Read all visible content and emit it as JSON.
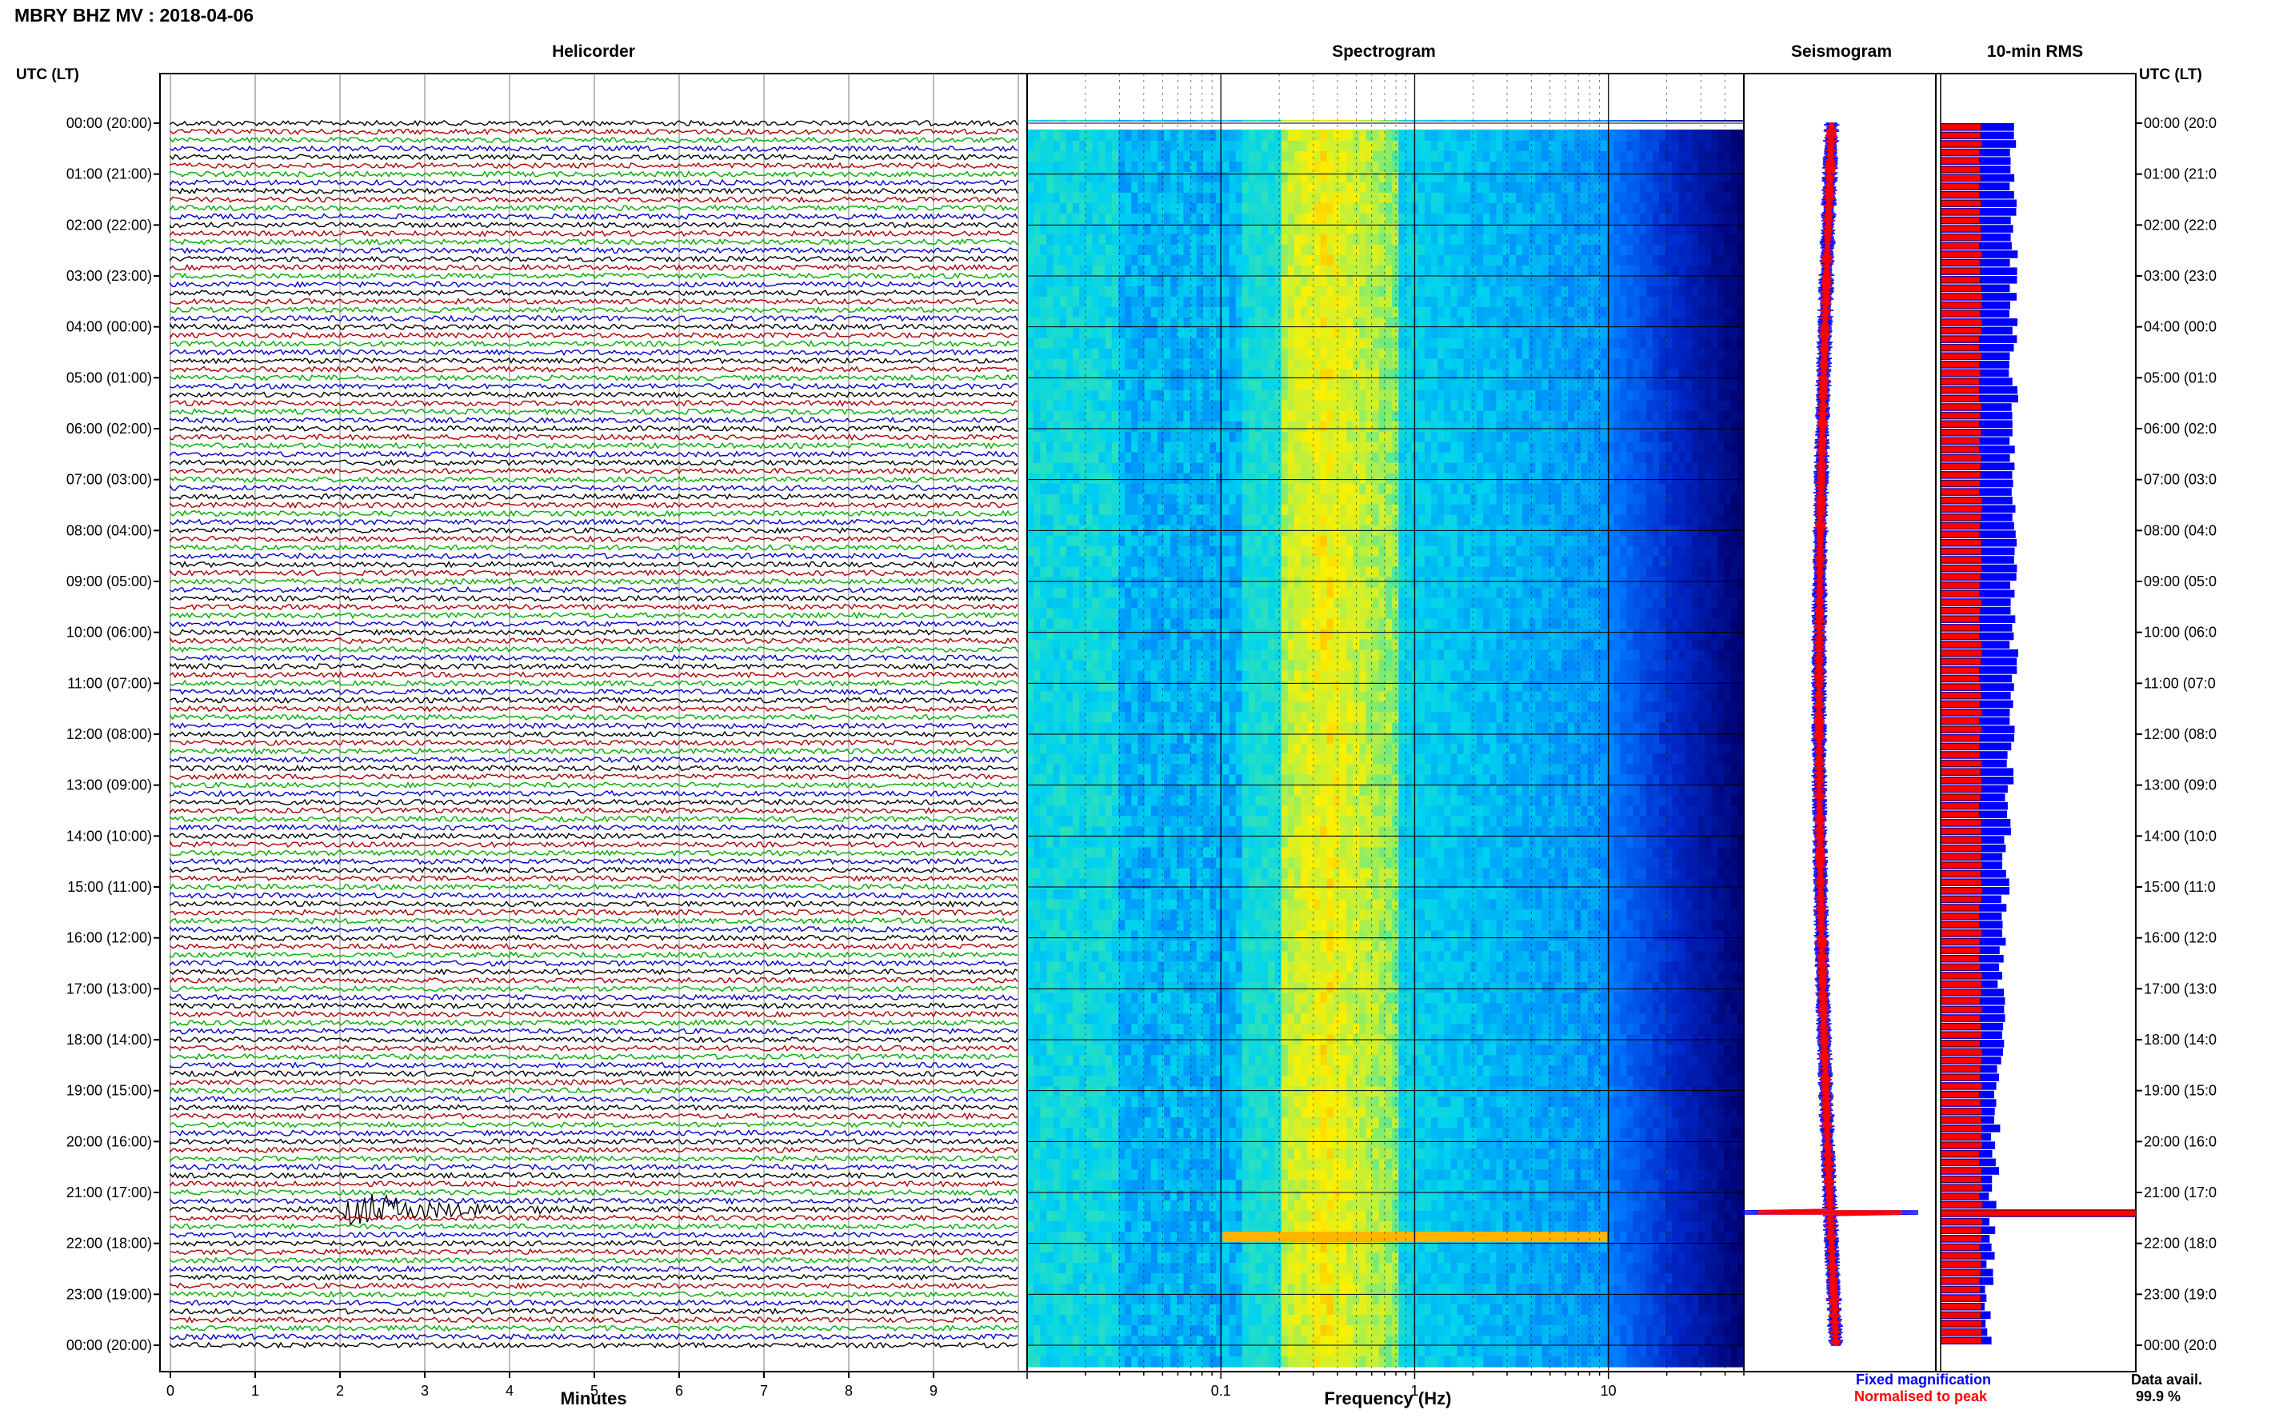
{
  "header": {
    "station_title": "MBRY BHZ MV : 2018-04-06",
    "left_axis_label": "UTC (LT)",
    "right_axis_label": "UTC (LT)"
  },
  "panels": {
    "helicorder_title": "Helicorder",
    "spectrogram_title": "Spectrogram",
    "seismogram_title": "Seismogram",
    "rms_title": "10-min RMS"
  },
  "footer": {
    "legend_fixed": "Fixed magnification",
    "legend_normalised": "Normalised to peak",
    "data_avail_label": "Data avail.",
    "data_avail_value": "99.9 %"
  },
  "colors": {
    "trace_cycle": [
      "#000000",
      "#aa0000",
      "#00aa00",
      "#0000cc"
    ],
    "fixed_magnification": "#0000ff",
    "normalised_to_peak": "#ff0000"
  },
  "chart_data": [
    {
      "type": "line",
      "title": "Helicorder",
      "xlabel": "Minutes",
      "x_ticks": [
        "0",
        "1",
        "2",
        "3",
        "4",
        "5",
        "6",
        "7",
        "8",
        "9"
      ],
      "xlim": [
        0,
        10
      ],
      "rows_per_hour": 6,
      "time_labels_utc_lt": [
        "00:00 (20:00)",
        "01:00 (21:00)",
        "02:00 (22:00)",
        "03:00 (23:00)",
        "04:00 (00:00)",
        "05:00 (01:00)",
        "06:00 (02:00)",
        "07:00 (03:00)",
        "08:00 (04:00)",
        "09:00 (05:00)",
        "10:00 (06:00)",
        "11:00 (07:00)",
        "12:00 (08:00)",
        "13:00 (09:00)",
        "14:00 (10:00)",
        "15:00 (11:00)",
        "16:00 (12:00)",
        "17:00 (13:00)",
        "18:00 (14:00)",
        "19:00 (15:00)",
        "20:00 (16:00)",
        "21:00 (17:00)",
        "22:00 (18:00)",
        "23:00 (19:00)",
        "00:00 (20:00)"
      ],
      "right_time_labels": [
        "00:00 (20:0",
        "01:00 (21:0",
        "02:00 (22:0",
        "03:00 (23:0",
        "04:00 (00:0",
        "05:00 (01:0",
        "06:00 (02:0",
        "07:00 (03:0",
        "08:00 (04:0",
        "09:00 (05:0",
        "10:00 (06:0",
        "11:00 (07:0",
        "12:00 (08:0",
        "13:00 (09:0",
        "14:00 (10:0",
        "15:00 (11:0",
        "16:00 (12:0",
        "17:00 (13:0",
        "18:00 (14:0",
        "19:00 (15:0",
        "20:00 (16:0",
        "21:00 (17:0",
        "22:00 (18:0",
        "23:00 (19:0",
        "00:00 (20:0"
      ],
      "event": {
        "hour": 21,
        "row_in_hour": 2,
        "start_minute": 2.0,
        "end_minute": 6.0
      }
    },
    {
      "type": "heatmap",
      "title": "Spectrogram",
      "xlabel": "Frequency (Hz)",
      "x_scale": "log",
      "xlim_hz": [
        0.01,
        50
      ],
      "x_tick_labels": [
        "0.1",
        "1",
        "10"
      ],
      "x_tick_values": [
        0.1,
        1,
        10
      ],
      "peak_band_hz": [
        0.2,
        0.8
      ],
      "event_hour": 21.4
    },
    {
      "type": "line",
      "title": "Seismogram",
      "series": [
        {
          "name": "Fixed magnification"
        },
        {
          "name": "Normalised to peak"
        }
      ],
      "event_hour": 21.4
    },
    {
      "type": "bar",
      "title": "10-min RMS",
      "orientation": "horizontal",
      "event_hour": 21.4
    }
  ]
}
